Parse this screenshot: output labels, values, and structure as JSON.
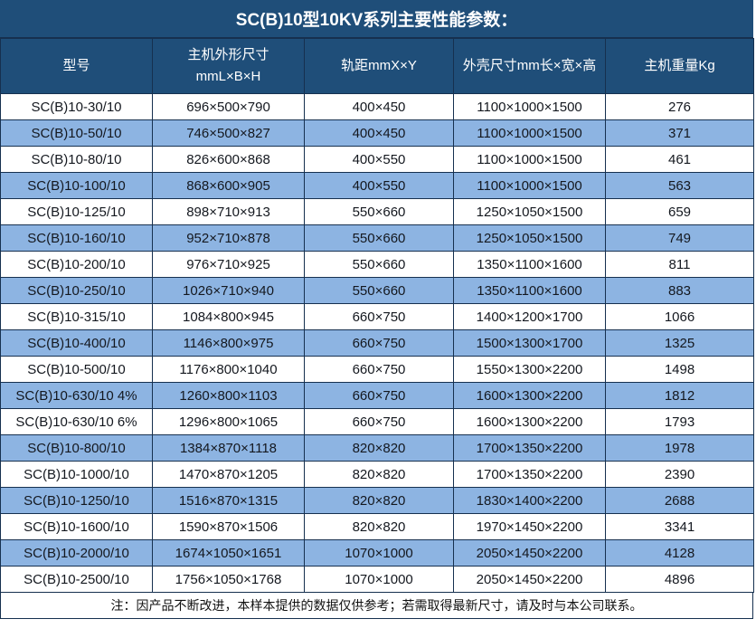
{
  "title": "SC(B)10型10KV系列主要性能参数：",
  "colors": {
    "header_bg": "#1F4E79",
    "row_alt_bg": "#8DB4E2",
    "row_bg": "#FFFFFF",
    "border": "#16304F"
  },
  "table": {
    "headers": [
      "型号",
      "主机外形尺寸\nmmL×B×H",
      "轨距mmX×Y",
      "外壳尺寸mm长×宽×高",
      "主机重量Kg"
    ],
    "rows": [
      [
        "SC(B)10-30/10",
        "696×500×790",
        "400×450",
        "1100×1000×1500",
        "276"
      ],
      [
        "SC(B)10-50/10",
        "746×500×827",
        "400×450",
        "1100×1000×1500",
        "371"
      ],
      [
        "SC(B)10-80/10",
        "826×600×868",
        "400×550",
        "1100×1000×1500",
        "461"
      ],
      [
        "SC(B)10-100/10",
        "868×600×905",
        "400×550",
        "1100×1000×1500",
        "563"
      ],
      [
        "SC(B)10-125/10",
        "898×710×913",
        "550×660",
        "1250×1050×1500",
        "659"
      ],
      [
        "SC(B)10-160/10",
        "952×710×878",
        "550×660",
        "1250×1050×1500",
        "749"
      ],
      [
        "SC(B)10-200/10",
        "976×710×925",
        "550×660",
        "1350×1100×1600",
        "811"
      ],
      [
        "SC(B)10-250/10",
        "1026×710×940",
        "550×660",
        "1350×1100×1600",
        "883"
      ],
      [
        "SC(B)10-315/10",
        "1084×800×945",
        "660×750",
        "1400×1200×1700",
        "1066"
      ],
      [
        "SC(B)10-400/10",
        "1146×800×975",
        "660×750",
        "1500×1300×1700",
        "1325"
      ],
      [
        "SC(B)10-500/10",
        "1176×800×1040",
        "660×750",
        "1550×1300×2200",
        "1498"
      ],
      [
        "SC(B)10-630/10 4%",
        "1260×800×1103",
        "660×750",
        "1600×1300×2200",
        "1812"
      ],
      [
        "SC(B)10-630/10 6%",
        "1296×800×1065",
        "660×750",
        "1600×1300×2200",
        "1793"
      ],
      [
        "SC(B)10-800/10",
        "1384×870×1118",
        "820×820",
        "1700×1350×2200",
        "1978"
      ],
      [
        "SC(B)10-1000/10",
        "1470×870×1205",
        "820×820",
        "1700×1350×2200",
        "2390"
      ],
      [
        "SC(B)10-1250/10",
        "1516×870×1315",
        "820×820",
        "1830×1400×2200",
        "2688"
      ],
      [
        "SC(B)10-1600/10",
        "1590×870×1506",
        "820×820",
        "1970×1450×2200",
        "3341"
      ],
      [
        "SC(B)10-2000/10",
        "1674×1050×1651",
        "1070×1000",
        "2050×1450×2200",
        "4128"
      ],
      [
        "SC(B)10-2500/10",
        "1756×1050×1768",
        "1070×1000",
        "2050×1450×2200",
        "4896"
      ]
    ]
  },
  "note": "注：因产品不断改进，本样本提供的数据仅供参考；若需取得最新尺寸，请及时与本公司联系。"
}
